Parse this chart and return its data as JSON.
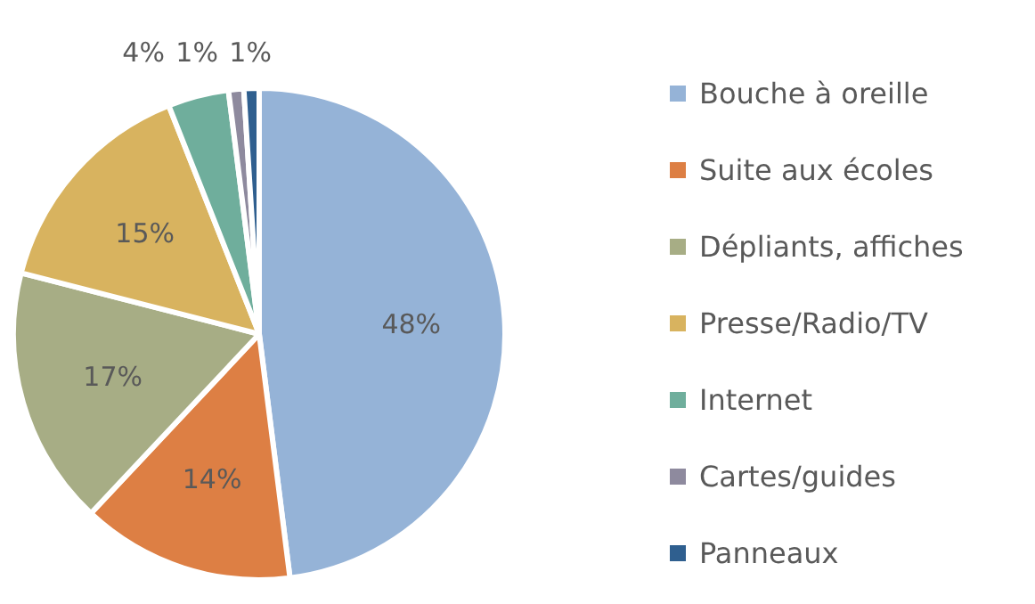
{
  "chart_data": {
    "type": "pie",
    "categories": [
      "Bouche à oreille",
      "Suite aux écoles",
      "Dépliants, affiches",
      "Presse/Radio/TV",
      "Internet",
      "Cartes/guides",
      "Panneaux"
    ],
    "values": [
      48,
      14,
      17,
      15,
      4,
      1,
      1
    ],
    "colors": [
      "#95b3d7",
      "#dd7f44",
      "#a7ad85",
      "#d8b35f",
      "#6fae9c",
      "#8e8a9e",
      "#2f5f8f"
    ],
    "value_labels": [
      "48%",
      "14%",
      "17%",
      "15%",
      "4%",
      "1%",
      "1%"
    ],
    "legend": "right"
  }
}
